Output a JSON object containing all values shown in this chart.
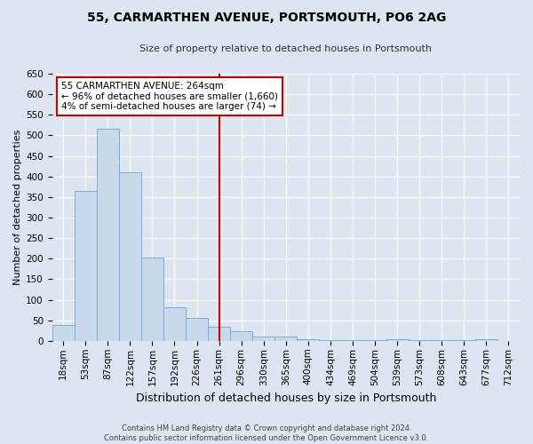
{
  "title": "55, CARMARTHEN AVENUE, PORTSMOUTH, PO6 2AG",
  "subtitle": "Size of property relative to detached houses in Portsmouth",
  "xlabel": "Distribution of detached houses by size in Portsmouth",
  "ylabel": "Number of detached properties",
  "bar_labels": [
    "18sqm",
    "53sqm",
    "87sqm",
    "122sqm",
    "157sqm",
    "192sqm",
    "226sqm",
    "261sqm",
    "296sqm",
    "330sqm",
    "365sqm",
    "400sqm",
    "434sqm",
    "469sqm",
    "504sqm",
    "539sqm",
    "573sqm",
    "608sqm",
    "643sqm",
    "677sqm",
    "712sqm"
  ],
  "bar_heights": [
    38,
    365,
    517,
    410,
    202,
    82,
    56,
    35,
    24,
    10,
    10,
    5,
    1,
    1,
    1,
    4,
    1,
    1,
    1,
    5,
    0
  ],
  "bar_color": "#c8daea",
  "bar_edge_color": "#7aaed6",
  "vline_x_idx": 7,
  "vline_color": "#cc0000",
  "annotation_box_text": "55 CARMARTHEN AVENUE: 264sqm\n← 96% of detached houses are smaller (1,660)\n4% of semi-detached houses are larger (74) →",
  "annotation_box_color": "#cc0000",
  "ylim": [
    0,
    650
  ],
  "yticks": [
    0,
    50,
    100,
    150,
    200,
    250,
    300,
    350,
    400,
    450,
    500,
    550,
    600,
    650
  ],
  "bg_color": "#dde6f0",
  "grid_color": "#ffffff",
  "footer_line1": "Contains HM Land Registry data © Crown copyright and database right 2024.",
  "footer_line2": "Contains public sector information licensed under the Open Government Licence v3.0.",
  "title_fontsize": 10,
  "subtitle_fontsize": 8,
  "ylabel_fontsize": 8,
  "xlabel_fontsize": 9,
  "tick_fontsize": 7.5,
  "annot_fontsize": 7.5,
  "footer_fontsize": 6
}
